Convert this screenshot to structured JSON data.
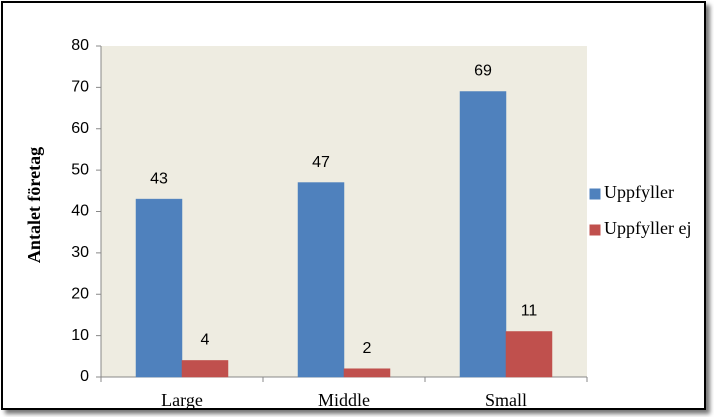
{
  "chart_data": {
    "type": "bar",
    "y_label": "Antalet företag",
    "categories": [
      "Large",
      "Middle",
      "Small"
    ],
    "series": [
      {
        "name": "Uppfyller",
        "color": "#4f81bd",
        "values": [
          43,
          47,
          69
        ]
      },
      {
        "name": "Uppfyller ej",
        "color": "#c0504d",
        "values": [
          4,
          2,
          11
        ]
      }
    ],
    "ylim": [
      0,
      80
    ],
    "yticks": [
      0,
      10,
      20,
      30,
      40,
      50,
      60,
      70,
      80
    ],
    "grid": false,
    "legend": "right",
    "plot_background": "#eeece1"
  }
}
